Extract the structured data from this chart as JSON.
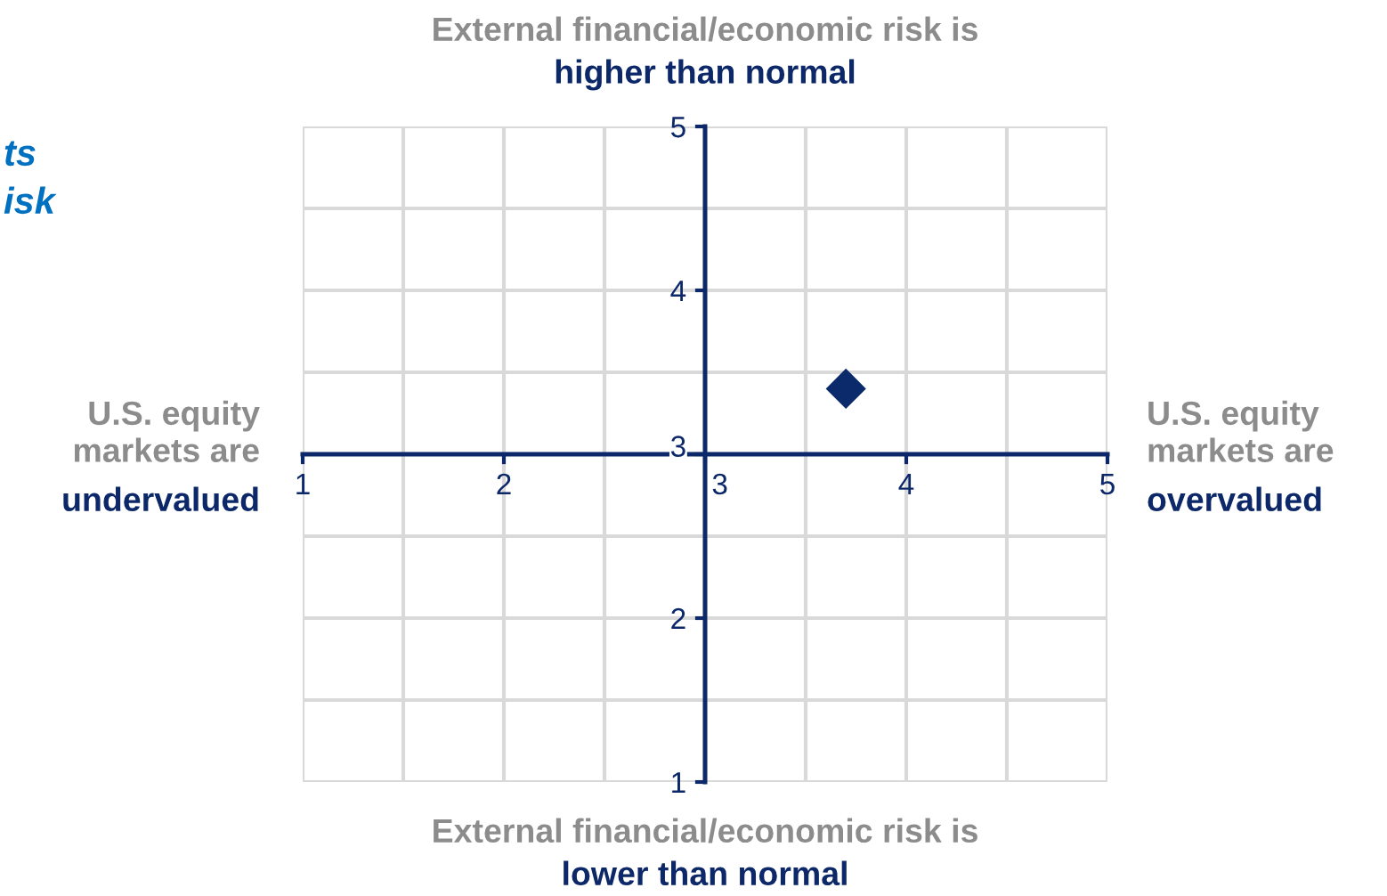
{
  "chart_data": {
    "type": "scatter",
    "x": [
      3.7
    ],
    "values": [
      3.4
    ],
    "color": "#0b2a6b",
    "marker": "diamond",
    "xlim": [
      1,
      5
    ],
    "ylim": [
      1,
      5
    ],
    "xticks": [
      1,
      {
        "value": 1.5,
        "label": null
      },
      2,
      {
        "value": 2.5,
        "label": null
      },
      3,
      {
        "value": 3.5,
        "label": null
      },
      4,
      {
        "value": 4.5,
        "label": null
      },
      5
    ],
    "yticks": [
      1,
      {
        "value": 1.5,
        "label": null
      },
      2,
      {
        "value": 2.5,
        "label": null
      },
      3,
      {
        "value": 3.5,
        "label": null
      },
      4,
      {
        "value": 4.5,
        "label": null
      },
      5
    ],
    "grid": true,
    "annotations": [
      "External financial/economic risk is",
      "higher than normal",
      "External financial/economic risk is",
      "lower than normal",
      "U.S. equity\nmarkets are",
      "undervalued",
      "U.S. equity\nmarkets are",
      "overvalued",
      "ts\nisk"
    ]
  }
}
